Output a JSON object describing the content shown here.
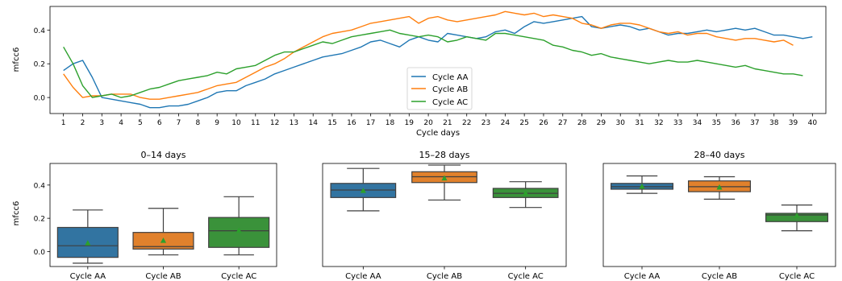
{
  "chart_data": [
    {
      "type": "line",
      "xlabel": "Cycle days",
      "ylabel": "mfcc6",
      "xlim": [
        0.3,
        40.7
      ],
      "ylim": [
        -0.095,
        0.54
      ],
      "xticks": [
        1,
        2,
        3,
        4,
        5,
        6,
        7,
        8,
        9,
        10,
        11,
        12,
        13,
        14,
        15,
        16,
        17,
        18,
        19,
        20,
        21,
        22,
        23,
        24,
        25,
        26,
        27,
        28,
        29,
        30,
        31,
        32,
        33,
        34,
        35,
        36,
        37,
        38,
        39,
        40
      ],
      "yticks": [
        0.0,
        0.2,
        0.4
      ],
      "ytick_labels": [
        "0.0",
        "0.2",
        "0.4"
      ],
      "legend_position": "center-bottom",
      "series": [
        {
          "name": "Cycle AA",
          "color": "#1f77b4",
          "x": [
            1,
            1.5,
            2,
            2.5,
            3,
            3.5,
            4,
            4.5,
            5,
            5.5,
            6,
            6.5,
            7,
            7.5,
            8,
            8.5,
            9,
            9.5,
            10,
            10.5,
            11,
            11.5,
            12,
            12.5,
            13,
            13.5,
            14,
            14.5,
            15,
            15.5,
            16,
            16.5,
            17,
            17.5,
            18,
            18.5,
            19,
            19.5,
            20,
            20.5,
            21,
            21.5,
            22,
            22.5,
            23,
            23.5,
            24,
            24.5,
            25,
            25.5,
            26,
            26.5,
            27,
            27.5,
            28,
            28.5,
            29,
            29.5,
            30,
            30.5,
            31,
            31.5,
            32,
            32.5,
            33,
            33.5,
            34,
            34.5,
            35,
            35.5,
            36,
            36.5,
            37,
            37.5,
            38,
            38.5,
            39,
            39.5,
            40
          ],
          "y": [
            0.16,
            0.2,
            0.22,
            0.12,
            0.0,
            -0.01,
            -0.02,
            -0.03,
            -0.04,
            -0.06,
            -0.06,
            -0.05,
            -0.05,
            -0.04,
            -0.02,
            0.0,
            0.03,
            0.04,
            0.04,
            0.07,
            0.09,
            0.11,
            0.14,
            0.16,
            0.18,
            0.2,
            0.22,
            0.24,
            0.25,
            0.26,
            0.28,
            0.3,
            0.33,
            0.34,
            0.32,
            0.3,
            0.34,
            0.36,
            0.34,
            0.33,
            0.38,
            0.37,
            0.36,
            0.35,
            0.36,
            0.39,
            0.4,
            0.38,
            0.42,
            0.45,
            0.44,
            0.45,
            0.46,
            0.47,
            0.48,
            0.42,
            0.41,
            0.42,
            0.43,
            0.42,
            0.4,
            0.41,
            0.39,
            0.37,
            0.38,
            0.38,
            0.39,
            0.4,
            0.39,
            0.4,
            0.41,
            0.4,
            0.41,
            0.39,
            0.37,
            0.37,
            0.36,
            0.35,
            0.36
          ]
        },
        {
          "name": "Cycle AB",
          "color": "#ff7f0e",
          "x": [
            1,
            1.5,
            2,
            2.5,
            3,
            3.5,
            4,
            4.5,
            5,
            5.5,
            6,
            6.5,
            7,
            7.5,
            8,
            8.5,
            9,
            9.5,
            10,
            10.5,
            11,
            11.5,
            12,
            12.5,
            13,
            13.5,
            14,
            14.5,
            15,
            15.5,
            16,
            16.5,
            17,
            17.5,
            18,
            18.5,
            19,
            19.5,
            20,
            20.5,
            21,
            21.5,
            22,
            22.5,
            23,
            23.5,
            24,
            24.5,
            25,
            25.5,
            26,
            26.5,
            27,
            27.5,
            28,
            28.5,
            29,
            29.5,
            30,
            30.5,
            31,
            31.5,
            32,
            32.5,
            33,
            33.5,
            34,
            34.5,
            35,
            35.5,
            36,
            36.5,
            37,
            37.5,
            38,
            38.5,
            39
          ],
          "y": [
            0.14,
            0.06,
            0.0,
            0.01,
            0.01,
            0.02,
            0.02,
            0.02,
            0.0,
            -0.01,
            -0.01,
            0.0,
            0.01,
            0.02,
            0.03,
            0.05,
            0.07,
            0.08,
            0.09,
            0.12,
            0.15,
            0.18,
            0.2,
            0.23,
            0.27,
            0.3,
            0.33,
            0.36,
            0.38,
            0.39,
            0.4,
            0.42,
            0.44,
            0.45,
            0.46,
            0.47,
            0.48,
            0.44,
            0.47,
            0.48,
            0.46,
            0.45,
            0.46,
            0.47,
            0.48,
            0.49,
            0.51,
            0.5,
            0.49,
            0.5,
            0.48,
            0.49,
            0.48,
            0.47,
            0.44,
            0.43,
            0.41,
            0.43,
            0.44,
            0.44,
            0.43,
            0.41,
            0.39,
            0.38,
            0.39,
            0.37,
            0.38,
            0.38,
            0.36,
            0.35,
            0.34,
            0.35,
            0.35,
            0.34,
            0.33,
            0.34,
            0.31
          ]
        },
        {
          "name": "Cycle AC",
          "color": "#2ca02c",
          "x": [
            1,
            1.5,
            2,
            2.5,
            3,
            3.5,
            4,
            4.5,
            5,
            5.5,
            6,
            6.5,
            7,
            7.5,
            8,
            8.5,
            9,
            9.5,
            10,
            10.5,
            11,
            11.5,
            12,
            12.5,
            13,
            13.5,
            14,
            14.5,
            15,
            15.5,
            16,
            16.5,
            17,
            17.5,
            18,
            18.5,
            19,
            19.5,
            20,
            20.5,
            21,
            21.5,
            22,
            22.5,
            23,
            23.5,
            24,
            24.5,
            25,
            25.5,
            26,
            26.5,
            27,
            27.5,
            28,
            28.5,
            29,
            29.5,
            30,
            30.5,
            31,
            31.5,
            32,
            32.5,
            33,
            33.5,
            34,
            34.5,
            35,
            35.5,
            36,
            36.5,
            37,
            37.5,
            38,
            38.5,
            39,
            39.5
          ],
          "y": [
            0.3,
            0.2,
            0.07,
            0.0,
            0.01,
            0.02,
            0.0,
            0.01,
            0.03,
            0.05,
            0.06,
            0.08,
            0.1,
            0.11,
            0.12,
            0.13,
            0.15,
            0.14,
            0.17,
            0.18,
            0.19,
            0.22,
            0.25,
            0.27,
            0.27,
            0.29,
            0.31,
            0.33,
            0.32,
            0.34,
            0.36,
            0.37,
            0.38,
            0.39,
            0.4,
            0.38,
            0.37,
            0.36,
            0.37,
            0.36,
            0.33,
            0.34,
            0.36,
            0.35,
            0.34,
            0.38,
            0.38,
            0.37,
            0.36,
            0.35,
            0.34,
            0.31,
            0.3,
            0.28,
            0.27,
            0.25,
            0.26,
            0.24,
            0.23,
            0.22,
            0.21,
            0.2,
            0.21,
            0.22,
            0.21,
            0.21,
            0.22,
            0.21,
            0.2,
            0.19,
            0.18,
            0.19,
            0.17,
            0.16,
            0.15,
            0.14,
            0.14,
            0.13
          ]
        }
      ]
    },
    {
      "type": "box",
      "title": "0–14 days",
      "ylabel": "mfcc6",
      "ylim": [
        -0.09,
        0.53
      ],
      "yticks": [
        0.0,
        0.2,
        0.4
      ],
      "ytick_labels": [
        "0.0",
        "0.2",
        "0.4"
      ],
      "categories": [
        "Cycle AA",
        "Cycle AB",
        "Cycle AC"
      ],
      "colors": [
        "#3274a1",
        "#e1812c",
        "#3a923a"
      ],
      "boxes": [
        {
          "whislo": -0.07,
          "q1": -0.035,
          "med": 0.035,
          "q3": 0.145,
          "whishi": 0.25,
          "mean": 0.05
        },
        {
          "whislo": -0.02,
          "q1": 0.015,
          "med": 0.03,
          "q3": 0.115,
          "whishi": 0.26,
          "mean": 0.065
        },
        {
          "whislo": -0.02,
          "q1": 0.025,
          "med": 0.125,
          "q3": 0.205,
          "whishi": 0.33,
          "mean": 0.125
        }
      ]
    },
    {
      "type": "box",
      "title": "15–28 days",
      "ylim": [
        -0.09,
        0.53
      ],
      "categories": [
        "Cycle AA",
        "Cycle AB",
        "Cycle AC"
      ],
      "colors": [
        "#3274a1",
        "#e1812c",
        "#3a923a"
      ],
      "boxes": [
        {
          "whislo": 0.245,
          "q1": 0.325,
          "med": 0.37,
          "q3": 0.41,
          "whishi": 0.5,
          "mean": 0.365
        },
        {
          "whislo": 0.31,
          "q1": 0.415,
          "med": 0.45,
          "q3": 0.48,
          "whishi": 0.52,
          "mean": 0.44
        },
        {
          "whislo": 0.265,
          "q1": 0.325,
          "med": 0.35,
          "q3": 0.38,
          "whishi": 0.42,
          "mean": 0.35
        }
      ]
    },
    {
      "type": "box",
      "title": "28–40 days",
      "ylim": [
        -0.09,
        0.53
      ],
      "categories": [
        "Cycle AA",
        "Cycle AB",
        "Cycle AC"
      ],
      "colors": [
        "#3274a1",
        "#e1812c",
        "#3a923a"
      ],
      "boxes": [
        {
          "whislo": 0.35,
          "q1": 0.375,
          "med": 0.39,
          "q3": 0.41,
          "whishi": 0.455,
          "mean": 0.39
        },
        {
          "whislo": 0.315,
          "q1": 0.36,
          "med": 0.39,
          "q3": 0.425,
          "whishi": 0.45,
          "mean": 0.385
        },
        {
          "whislo": 0.125,
          "q1": 0.18,
          "med": 0.22,
          "q3": 0.23,
          "whishi": 0.28,
          "mean": 0.215
        }
      ]
    }
  ]
}
